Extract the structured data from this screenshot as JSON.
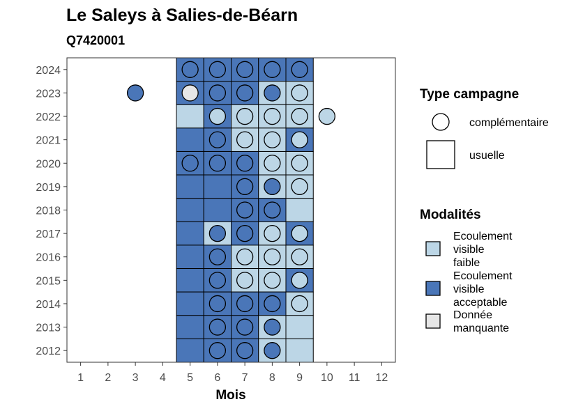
{
  "chart_data": {
    "type": "heatmap",
    "title": "Le Saleys à Salies-de-Béarn",
    "subtitle": "Q7420001",
    "xlabel": "Mois",
    "ylabel": "",
    "x_ticks": [
      "1",
      "2",
      "3",
      "4",
      "5",
      "6",
      "7",
      "8",
      "9",
      "10",
      "11",
      "12"
    ],
    "y_ticks": [
      "2012",
      "2013",
      "2014",
      "2015",
      "2016",
      "2017",
      "2018",
      "2019",
      "2020",
      "2021",
      "2022",
      "2023",
      "2024"
    ],
    "xlim": [
      0.5,
      12.5
    ],
    "ylim": [
      2011.5,
      2024.5
    ],
    "colors": {
      "faible": "#bcd6e6",
      "acceptable": "#4a76b8",
      "manquante": "#e6e6e6"
    },
    "legend_type": {
      "title": "Type campagne",
      "items": [
        {
          "key": "complementaire",
          "label": "complémentaire",
          "shape": "circle"
        },
        {
          "key": "usuelle",
          "label": "usuelle",
          "shape": "square"
        }
      ]
    },
    "legend_modalites": {
      "title": "Modalités",
      "items": [
        {
          "key": "faible",
          "lines": [
            "Ecoulement",
            "visible",
            "faible"
          ]
        },
        {
          "key": "acceptable",
          "lines": [
            "Ecoulement",
            "visible",
            "acceptable"
          ]
        },
        {
          "key": "manquante",
          "lines": [
            "Donnée",
            "manquante"
          ]
        }
      ]
    },
    "usuelle": [
      {
        "year": 2024,
        "months": {
          "5": "acceptable",
          "6": "acceptable",
          "7": "acceptable",
          "8": "acceptable",
          "9": "acceptable"
        }
      },
      {
        "year": 2023,
        "months": {
          "5": "acceptable",
          "6": "acceptable",
          "7": "acceptable",
          "8": "faible",
          "9": "faible"
        }
      },
      {
        "year": 2022,
        "months": {
          "5": "faible",
          "6": "acceptable",
          "7": "faible",
          "8": "faible",
          "9": "faible"
        }
      },
      {
        "year": 2021,
        "months": {
          "5": "acceptable",
          "6": "acceptable",
          "7": "faible",
          "8": "faible",
          "9": "acceptable"
        }
      },
      {
        "year": 2020,
        "months": {
          "5": "acceptable",
          "6": "acceptable",
          "7": "acceptable",
          "8": "faible",
          "9": "faible"
        }
      },
      {
        "year": 2019,
        "months": {
          "5": "acceptable",
          "6": "acceptable",
          "7": "acceptable",
          "8": "faible",
          "9": "faible"
        }
      },
      {
        "year": 2018,
        "months": {
          "5": "acceptable",
          "6": "acceptable",
          "7": "acceptable",
          "8": "acceptable",
          "9": "faible"
        }
      },
      {
        "year": 2017,
        "months": {
          "5": "acceptable",
          "6": "faible",
          "7": "acceptable",
          "8": "faible",
          "9": "acceptable"
        }
      },
      {
        "year": 2016,
        "months": {
          "5": "acceptable",
          "6": "acceptable",
          "7": "faible",
          "8": "faible",
          "9": "faible"
        }
      },
      {
        "year": 2015,
        "months": {
          "5": "acceptable",
          "6": "acceptable",
          "7": "faible",
          "8": "faible",
          "9": "acceptable"
        }
      },
      {
        "year": 2014,
        "months": {
          "5": "acceptable",
          "6": "acceptable",
          "7": "acceptable",
          "8": "acceptable",
          "9": "faible"
        }
      },
      {
        "year": 2013,
        "months": {
          "5": "acceptable",
          "6": "acceptable",
          "7": "acceptable",
          "8": "faible",
          "9": "faible"
        }
      },
      {
        "year": 2012,
        "months": {
          "5": "acceptable",
          "6": "acceptable",
          "7": "acceptable",
          "8": "faible",
          "9": "faible"
        }
      }
    ],
    "complementaire": [
      {
        "year": 2024,
        "month": 5,
        "value": "acceptable"
      },
      {
        "year": 2024,
        "month": 6,
        "value": "acceptable"
      },
      {
        "year": 2024,
        "month": 7,
        "value": "acceptable"
      },
      {
        "year": 2024,
        "month": 8,
        "value": "acceptable"
      },
      {
        "year": 2024,
        "month": 9,
        "value": "acceptable"
      },
      {
        "year": 2023,
        "month": 3,
        "value": "acceptable"
      },
      {
        "year": 2023,
        "month": 5,
        "value": "manquante"
      },
      {
        "year": 2023,
        "month": 6,
        "value": "acceptable"
      },
      {
        "year": 2023,
        "month": 7,
        "value": "acceptable"
      },
      {
        "year": 2023,
        "month": 8,
        "value": "acceptable"
      },
      {
        "year": 2023,
        "month": 9,
        "value": "faible"
      },
      {
        "year": 2022,
        "month": 6,
        "value": "faible"
      },
      {
        "year": 2022,
        "month": 7,
        "value": "faible"
      },
      {
        "year": 2022,
        "month": 8,
        "value": "faible"
      },
      {
        "year": 2022,
        "month": 9,
        "value": "faible"
      },
      {
        "year": 2022,
        "month": 10,
        "value": "faible"
      },
      {
        "year": 2021,
        "month": 6,
        "value": "acceptable"
      },
      {
        "year": 2021,
        "month": 7,
        "value": "faible"
      },
      {
        "year": 2021,
        "month": 8,
        "value": "faible"
      },
      {
        "year": 2021,
        "month": 9,
        "value": "faible"
      },
      {
        "year": 2020,
        "month": 5,
        "value": "acceptable"
      },
      {
        "year": 2020,
        "month": 6,
        "value": "acceptable"
      },
      {
        "year": 2020,
        "month": 7,
        "value": "acceptable"
      },
      {
        "year": 2020,
        "month": 8,
        "value": "faible"
      },
      {
        "year": 2020,
        "month": 9,
        "value": "faible"
      },
      {
        "year": 2019,
        "month": 7,
        "value": "acceptable"
      },
      {
        "year": 2019,
        "month": 8,
        "value": "acceptable"
      },
      {
        "year": 2019,
        "month": 9,
        "value": "faible"
      },
      {
        "year": 2018,
        "month": 7,
        "value": "acceptable"
      },
      {
        "year": 2018,
        "month": 8,
        "value": "acceptable"
      },
      {
        "year": 2017,
        "month": 6,
        "value": "acceptable"
      },
      {
        "year": 2017,
        "month": 7,
        "value": "acceptable"
      },
      {
        "year": 2017,
        "month": 8,
        "value": "faible"
      },
      {
        "year": 2017,
        "month": 9,
        "value": "faible"
      },
      {
        "year": 2016,
        "month": 6,
        "value": "acceptable"
      },
      {
        "year": 2016,
        "month": 7,
        "value": "faible"
      },
      {
        "year": 2016,
        "month": 8,
        "value": "faible"
      },
      {
        "year": 2016,
        "month": 9,
        "value": "faible"
      },
      {
        "year": 2015,
        "month": 6,
        "value": "acceptable"
      },
      {
        "year": 2015,
        "month": 7,
        "value": "faible"
      },
      {
        "year": 2015,
        "month": 8,
        "value": "faible"
      },
      {
        "year": 2015,
        "month": 9,
        "value": "faible"
      },
      {
        "year": 2014,
        "month": 6,
        "value": "acceptable"
      },
      {
        "year": 2014,
        "month": 7,
        "value": "acceptable"
      },
      {
        "year": 2014,
        "month": 8,
        "value": "acceptable"
      },
      {
        "year": 2014,
        "month": 9,
        "value": "faible"
      },
      {
        "year": 2013,
        "month": 6,
        "value": "acceptable"
      },
      {
        "year": 2013,
        "month": 7,
        "value": "acceptable"
      },
      {
        "year": 2013,
        "month": 8,
        "value": "acceptable"
      },
      {
        "year": 2012,
        "month": 6,
        "value": "acceptable"
      },
      {
        "year": 2012,
        "month": 7,
        "value": "acceptable"
      },
      {
        "year": 2012,
        "month": 8,
        "value": "acceptable"
      }
    ]
  }
}
